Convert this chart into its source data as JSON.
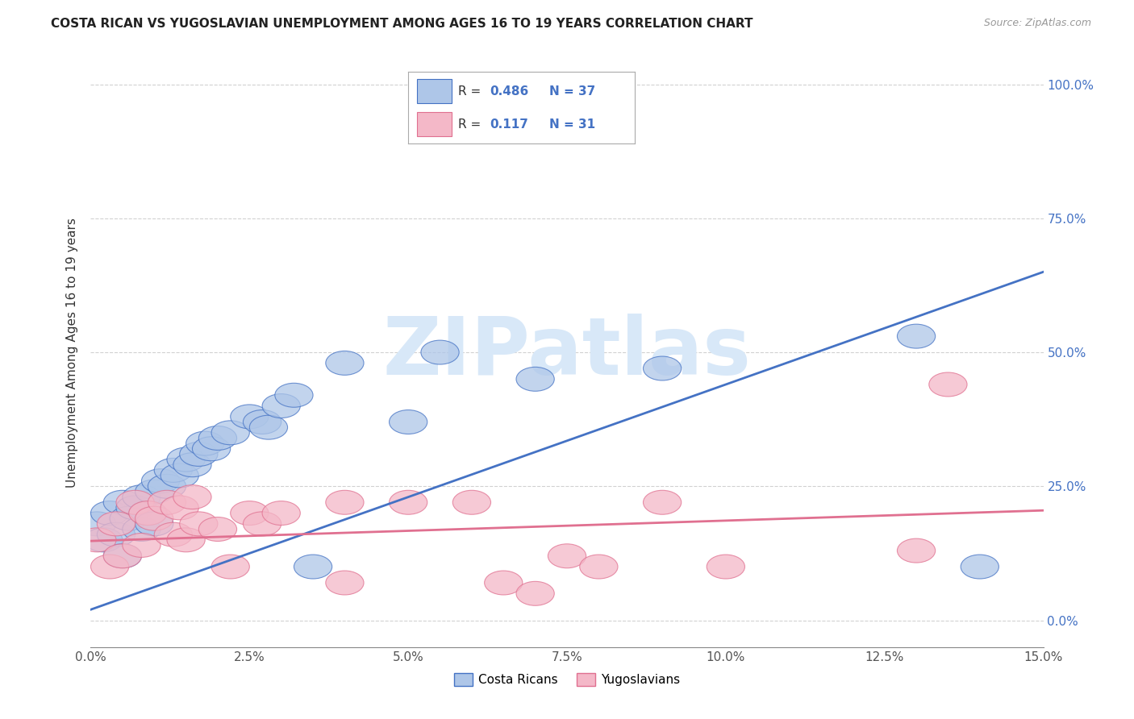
{
  "title": "COSTA RICAN VS YUGOSLAVIAN UNEMPLOYMENT AMONG AGES 16 TO 19 YEARS CORRELATION CHART",
  "source": "Source: ZipAtlas.com",
  "xlabel_ticks": [
    "0.0%",
    "2.5%",
    "5.0%",
    "7.5%",
    "10.0%",
    "12.5%",
    "15.0%"
  ],
  "ylabel_label": "Unemployment Among Ages 16 to 19 years",
  "xlim": [
    0.0,
    0.15
  ],
  "ylim": [
    -0.05,
    1.05
  ],
  "ytick_vals": [
    0.0,
    0.25,
    0.5,
    0.75,
    1.0
  ],
  "ytick_right_labels": [
    "0.0%",
    "25.0%",
    "50.0%",
    "75.0%",
    "100.0%"
  ],
  "legend_r_costa": "0.486",
  "legend_n_costa": "37",
  "legend_r_yugo": "0.117",
  "legend_n_yugo": "31",
  "costa_fill_color": "#aec6e8",
  "yugo_fill_color": "#f4b8c8",
  "costa_edge_color": "#4472c4",
  "yugo_edge_color": "#e07090",
  "costa_line_color": "#4472c4",
  "yugo_line_color": "#e07090",
  "legend_text_color": "#4472c4",
  "legend_n_color": "#4472c4",
  "watermark_text": "ZIPatlas",
  "watermark_color": "#d8e8f8",
  "background_color": "#ffffff",
  "grid_color": "#cccccc",
  "costa_scatter_x": [
    0.001,
    0.002,
    0.003,
    0.004,
    0.005,
    0.005,
    0.006,
    0.007,
    0.008,
    0.008,
    0.009,
    0.01,
    0.01,
    0.011,
    0.012,
    0.013,
    0.014,
    0.015,
    0.016,
    0.017,
    0.018,
    0.019,
    0.02,
    0.022,
    0.025,
    0.027,
    0.028,
    0.03,
    0.032,
    0.035,
    0.04,
    0.05,
    0.055,
    0.07,
    0.09,
    0.13,
    0.14
  ],
  "costa_scatter_y": [
    0.18,
    0.15,
    0.2,
    0.16,
    0.22,
    0.12,
    0.19,
    0.21,
    0.23,
    0.17,
    0.2,
    0.24,
    0.18,
    0.26,
    0.25,
    0.28,
    0.27,
    0.3,
    0.29,
    0.31,
    0.33,
    0.32,
    0.34,
    0.35,
    0.38,
    0.37,
    0.36,
    0.4,
    0.42,
    0.1,
    0.48,
    0.37,
    0.5,
    0.45,
    0.47,
    0.53,
    0.1
  ],
  "yugo_scatter_x": [
    0.001,
    0.003,
    0.004,
    0.005,
    0.007,
    0.008,
    0.009,
    0.01,
    0.012,
    0.013,
    0.014,
    0.015,
    0.016,
    0.017,
    0.02,
    0.022,
    0.025,
    0.027,
    0.03,
    0.04,
    0.04,
    0.05,
    0.06,
    0.065,
    0.07,
    0.075,
    0.08,
    0.09,
    0.1,
    0.13,
    0.135
  ],
  "yugo_scatter_y": [
    0.15,
    0.1,
    0.18,
    0.12,
    0.22,
    0.14,
    0.2,
    0.19,
    0.22,
    0.16,
    0.21,
    0.15,
    0.23,
    0.18,
    0.17,
    0.1,
    0.2,
    0.18,
    0.2,
    0.22,
    0.07,
    0.22,
    0.22,
    0.07,
    0.05,
    0.12,
    0.1,
    0.22,
    0.1,
    0.13,
    0.44
  ],
  "costa_trend_x": [
    0.0,
    0.15
  ],
  "costa_trend_y": [
    0.02,
    0.65
  ],
  "yugo_trend_x": [
    0.0,
    0.15
  ],
  "yugo_trend_y": [
    0.148,
    0.205
  ]
}
